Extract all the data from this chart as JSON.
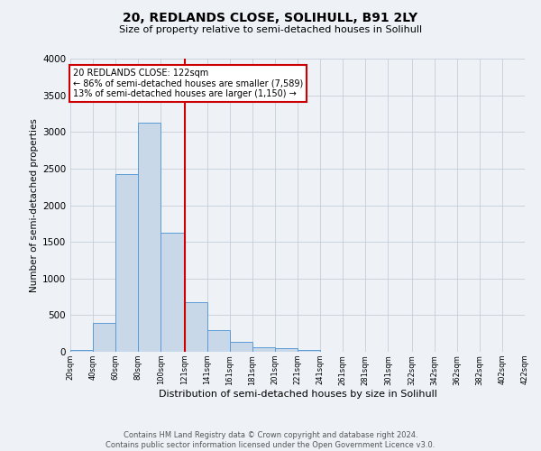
{
  "title": "20, REDLANDS CLOSE, SOLIHULL, B91 2LY",
  "subtitle": "Size of property relative to semi-detached houses in Solihull",
  "xlabel": "Distribution of semi-detached houses by size in Solihull",
  "ylabel": "Number of semi-detached properties",
  "bin_edges": [
    20,
    40,
    60,
    80,
    100,
    121,
    141,
    161,
    181,
    201,
    221,
    241,
    261,
    281,
    301,
    322,
    342,
    362,
    382,
    402,
    422
  ],
  "bar_heights": [
    30,
    400,
    2420,
    3130,
    1630,
    680,
    295,
    130,
    60,
    50,
    25,
    0,
    0,
    0,
    0,
    0,
    0,
    0,
    0,
    0
  ],
  "bar_color": "#c8d8e8",
  "bar_edge_color": "#5b9bd5",
  "vline_x": 121,
  "vline_color": "#cc0000",
  "annotation_title": "20 REDLANDS CLOSE: 122sqm",
  "annotation_line1": "← 86% of semi-detached houses are smaller (7,589)",
  "annotation_line2": "13% of semi-detached houses are larger (1,150) →",
  "annotation_box_color": "#ffffff",
  "annotation_box_edge": "#cc0000",
  "ylim": [
    0,
    4000
  ],
  "yticks": [
    0,
    500,
    1000,
    1500,
    2000,
    2500,
    3000,
    3500,
    4000
  ],
  "footer_line1": "Contains HM Land Registry data © Crown copyright and database right 2024.",
  "footer_line2": "Contains public sector information licensed under the Open Government Licence v3.0.",
  "background_color": "#eef2f7",
  "grid_color": "#c5cdd8"
}
